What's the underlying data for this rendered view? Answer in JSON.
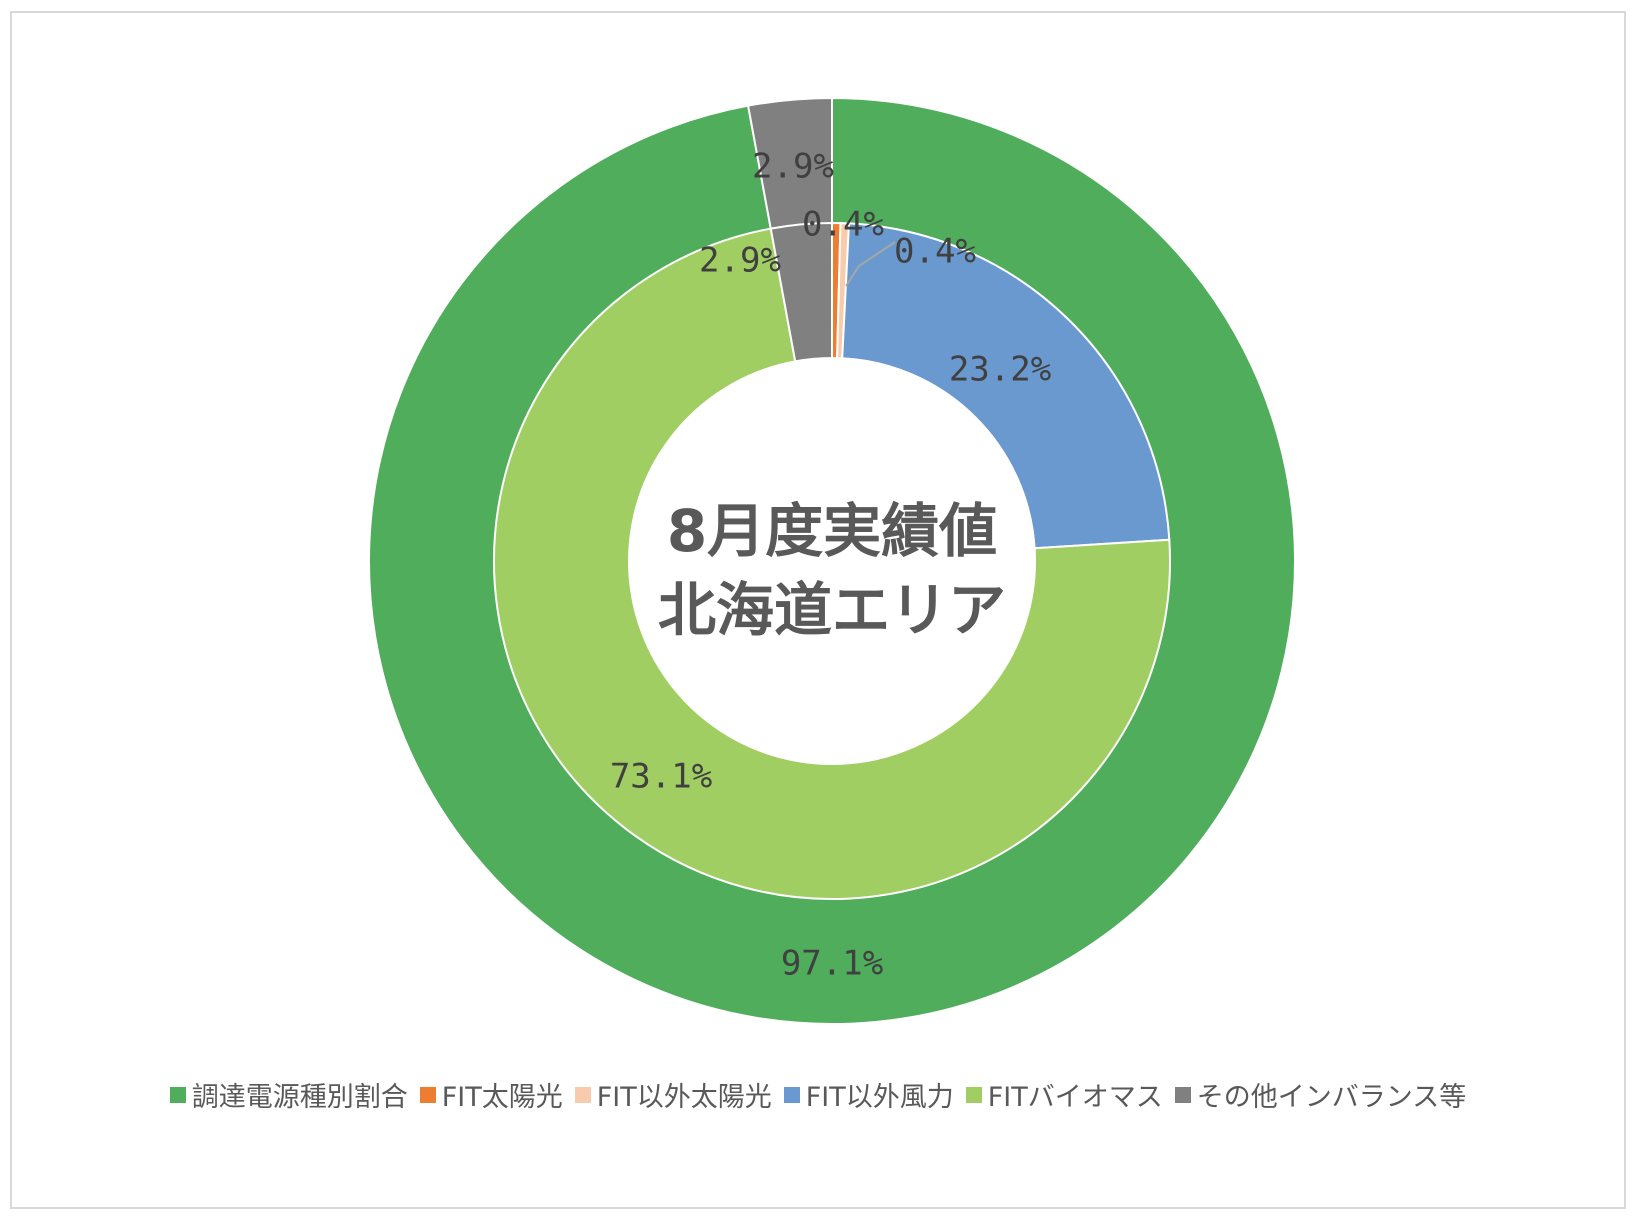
{
  "chart_data": {
    "type": "donut",
    "center_title_lines": [
      "8月度実績値",
      "北海道エリア"
    ],
    "legend_placement": "bottom",
    "rings": [
      {
        "ring": "outer",
        "slices": [
          {
            "name": "調達電源種別割合",
            "value": 97.1,
            "label": "97.1%",
            "color": "#4fad5b"
          },
          {
            "name": "その他インバランス等",
            "value": 2.9,
            "label": "2.9%",
            "color": "#808080"
          }
        ]
      },
      {
        "ring": "inner",
        "slices": [
          {
            "name": "FIT太陽光",
            "value": 0.4,
            "label": "0.4%",
            "color": "#ed7d31"
          },
          {
            "name": "FIT以外太陽光",
            "value": 0.4,
            "label": "0.4%",
            "color": "#f8cbad"
          },
          {
            "name": "FIT以外風力",
            "value": 23.2,
            "label": "23.2%",
            "color": "#6a99d0"
          },
          {
            "name": "FITバイオマス",
            "value": 73.1,
            "label": "73.1%",
            "color": "#a1ce63"
          },
          {
            "name": "その他インバランス等",
            "value": 2.9,
            "label": "2.9%",
            "color": "#808080"
          }
        ]
      }
    ],
    "legend": [
      {
        "name": "調達電源種別割合",
        "color": "#4fad5b"
      },
      {
        "name": "FIT太陽光",
        "color": "#ed7d31"
      },
      {
        "name": "FIT以外太陽光",
        "color": "#f8cbad"
      },
      {
        "name": "FIT以外風力",
        "color": "#6a99d0"
      },
      {
        "name": "FITバイオマス",
        "color": "#a1ce63"
      },
      {
        "name": "その他インバランス等",
        "color": "#808080"
      }
    ]
  }
}
